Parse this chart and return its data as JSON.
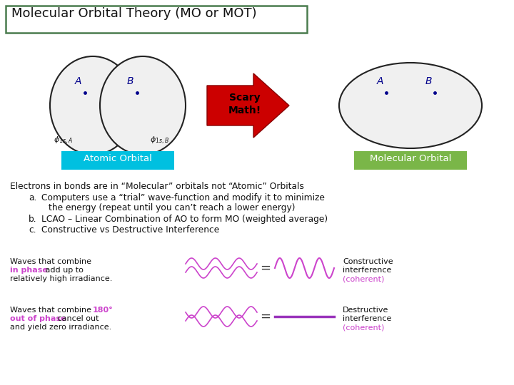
{
  "title": "Molecular Orbital Theory (MO or MOT)",
  "title_box_color": "#4a7c4e",
  "title_bg": "#ffffff",
  "title_fontsize": 13,
  "arrow_color": "#cc0000",
  "scary_math_text": "Scary\nMath!",
  "atomic_label": "Atomic Orbital",
  "atomic_label_bg": "#00c0e0",
  "molecular_label": "Molecular Orbital",
  "molecular_label_bg": "#7ab648",
  "circle_fill": "#f0f0f0",
  "circle_edge": "#222222",
  "ab_color": "#00008b",
  "electrons_text": "Electrons in bonds are in “Molecular” orbitals not “Atomic” Orbitals",
  "item_a": "Computers use a “trial” wave-function and modify it to minimize\n        the energy (repeat until you can’t reach a lower energy)",
  "item_b": "LCAO – Linear Combination of AO to form MO (weighted average)",
  "item_c": "Constructive vs Destructive Interference",
  "in_phase_color": "#cc44cc",
  "coherent_color": "#cc44cc",
  "wave_color": "#cc44cc",
  "flat_line_color": "#9933bb",
  "background": "#ffffff"
}
